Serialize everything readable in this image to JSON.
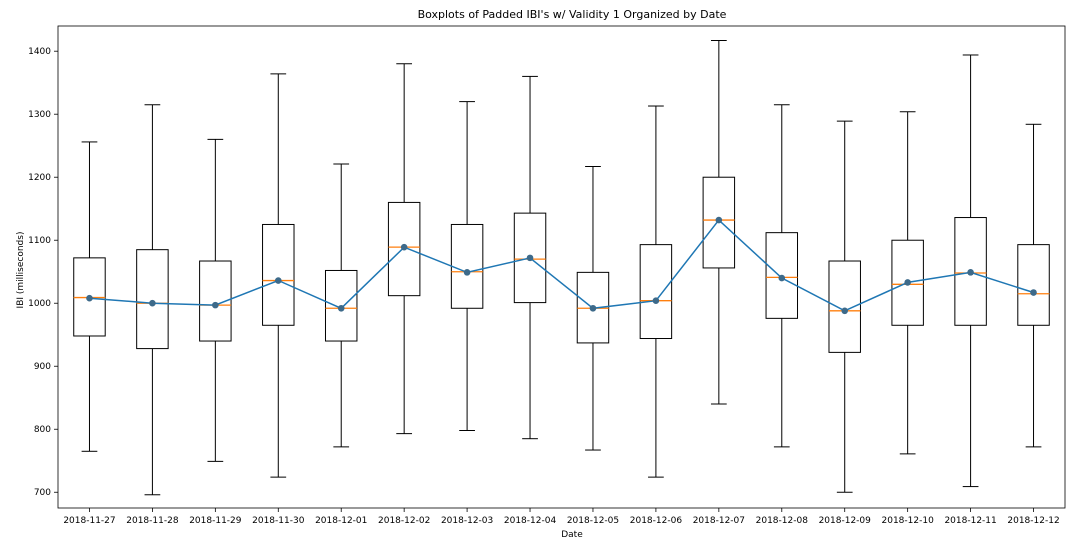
{
  "chart_data": {
    "type": "box",
    "title": "Boxplots of Padded IBI's w/ Validity 1 Organized by Date",
    "xlabel": "Date",
    "ylabel": "IBI (milliseconds)",
    "ylim": [
      675,
      1440
    ],
    "yticks": [
      700,
      800,
      900,
      1000,
      1100,
      1200,
      1300,
      1400
    ],
    "grid": false,
    "categories": [
      "2018-11-27",
      "2018-11-28",
      "2018-11-29",
      "2018-11-30",
      "2018-12-01",
      "2018-12-02",
      "2018-12-03",
      "2018-12-04",
      "2018-12-05",
      "2018-12-06",
      "2018-12-07",
      "2018-12-08",
      "2018-12-09",
      "2018-12-10",
      "2018-12-11",
      "2018-12-12"
    ],
    "boxes": [
      {
        "whislo": 765,
        "q1": 948,
        "med": 1009,
        "q3": 1072,
        "whishi": 1256
      },
      {
        "whislo": 696,
        "q1": 928,
        "med": 1000,
        "q3": 1085,
        "whishi": 1315
      },
      {
        "whislo": 749,
        "q1": 940,
        "med": 997,
        "q3": 1067,
        "whishi": 1260
      },
      {
        "whislo": 724,
        "q1": 965,
        "med": 1036,
        "q3": 1125,
        "whishi": 1364
      },
      {
        "whislo": 772,
        "q1": 940,
        "med": 992,
        "q3": 1052,
        "whishi": 1221
      },
      {
        "whislo": 793,
        "q1": 1012,
        "med": 1089,
        "q3": 1160,
        "whishi": 1380
      },
      {
        "whislo": 798,
        "q1": 992,
        "med": 1050,
        "q3": 1125,
        "whishi": 1320
      },
      {
        "whislo": 785,
        "q1": 1001,
        "med": 1070,
        "q3": 1143,
        "whishi": 1360
      },
      {
        "whislo": 767,
        "q1": 937,
        "med": 992,
        "q3": 1049,
        "whishi": 1217
      },
      {
        "whislo": 724,
        "q1": 944,
        "med": 1004,
        "q3": 1093,
        "whishi": 1313
      },
      {
        "whislo": 840,
        "q1": 1056,
        "med": 1132,
        "q3": 1200,
        "whishi": 1417
      },
      {
        "whislo": 772,
        "q1": 976,
        "med": 1041,
        "q3": 1112,
        "whishi": 1315
      },
      {
        "whislo": 700,
        "q1": 922,
        "med": 988,
        "q3": 1067,
        "whishi": 1289
      },
      {
        "whislo": 761,
        "q1": 965,
        "med": 1030,
        "q3": 1100,
        "whishi": 1304
      },
      {
        "whislo": 709,
        "q1": 965,
        "med": 1048,
        "q3": 1136,
        "whishi": 1394
      },
      {
        "whislo": 772,
        "q1": 965,
        "med": 1015,
        "q3": 1093,
        "whishi": 1284
      }
    ],
    "series": [
      {
        "type": "line",
        "values": [
          1008,
          1000,
          997,
          1036,
          992,
          1089,
          1049,
          1072,
          992,
          1004,
          1132,
          1040,
          988,
          1033,
          1049,
          1017
        ]
      }
    ],
    "colors": {
      "box": "#000000",
      "median": "#ff7f0e",
      "line": "#1f77b4",
      "marker": "#3d6a8a"
    }
  }
}
